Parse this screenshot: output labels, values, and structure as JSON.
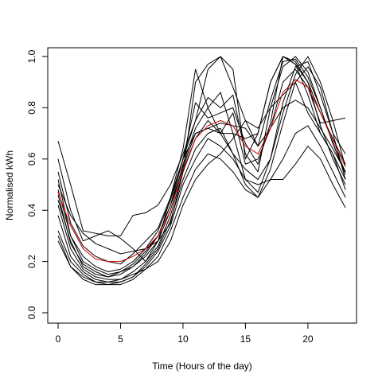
{
  "chart_data": {
    "type": "line",
    "title": "",
    "xlabel": "Time (Hours of the day)",
    "ylabel": "Normalised kWh",
    "xlim": [
      0,
      23
    ],
    "ylim": [
      0,
      1
    ],
    "x_ticks": [
      0,
      5,
      10,
      15,
      20
    ],
    "y_ticks": [
      0.0,
      0.2,
      0.4,
      0.6,
      0.8,
      1.0
    ],
    "x_tick_labels": [
      "0",
      "5",
      "10",
      "15",
      "20"
    ],
    "y_tick_labels": [
      "0.0",
      "0.2",
      "0.4",
      "0.6",
      "0.8",
      "1.0"
    ],
    "grid": false,
    "legend": "none",
    "colors": {
      "profile": "#000000",
      "average": "#cc0000"
    },
    "x": [
      0,
      1,
      2,
      3,
      4,
      5,
      6,
      7,
      8,
      9,
      10,
      11,
      12,
      13,
      14,
      15,
      16,
      17,
      18,
      19,
      20,
      21,
      22,
      23
    ],
    "series": [
      {
        "color": "#000000",
        "values": [
          0.67,
          0.5,
          0.32,
          0.31,
          0.3,
          0.3,
          0.38,
          0.39,
          0.42,
          0.5,
          0.62,
          0.75,
          0.95,
          1.0,
          0.88,
          0.75,
          0.65,
          0.72,
          0.8,
          0.83,
          0.8,
          0.72,
          0.64,
          0.55
        ]
      },
      {
        "color": "#000000",
        "values": [
          0.6,
          0.4,
          0.28,
          0.3,
          0.32,
          0.29,
          0.25,
          0.2,
          0.28,
          0.45,
          0.64,
          0.95,
          0.8,
          0.7,
          0.78,
          0.58,
          0.6,
          0.72,
          0.9,
          0.95,
          0.88,
          0.74,
          0.75,
          0.76
        ]
      },
      {
        "color": "#000000",
        "values": [
          0.55,
          0.35,
          0.26,
          0.22,
          0.2,
          0.19,
          0.23,
          0.28,
          0.33,
          0.45,
          0.6,
          0.7,
          0.72,
          0.7,
          0.7,
          0.68,
          0.7,
          0.9,
          1.0,
          0.97,
          0.85,
          0.7,
          0.62,
          0.48
        ]
      },
      {
        "color": "#000000",
        "values": [
          0.5,
          0.38,
          0.31,
          0.27,
          0.25,
          0.23,
          0.24,
          0.25,
          0.28,
          0.35,
          0.55,
          0.9,
          0.97,
          1.0,
          0.95,
          0.6,
          0.7,
          0.9,
          1.0,
          0.98,
          0.9,
          0.73,
          0.6,
          0.5
        ]
      },
      {
        "color": "#000000",
        "values": [
          0.48,
          0.3,
          0.2,
          0.17,
          0.15,
          0.16,
          0.19,
          0.24,
          0.3,
          0.42,
          0.6,
          0.75,
          0.84,
          0.8,
          0.85,
          0.62,
          0.55,
          0.8,
          0.96,
          1.0,
          0.94,
          0.8,
          0.66,
          0.55
        ]
      },
      {
        "color": "#000000",
        "values": [
          0.44,
          0.28,
          0.18,
          0.15,
          0.14,
          0.15,
          0.18,
          0.22,
          0.28,
          0.4,
          0.58,
          0.72,
          0.8,
          0.86,
          0.7,
          0.52,
          0.47,
          0.6,
          0.82,
          0.96,
          0.98,
          0.85,
          0.7,
          0.62
        ]
      },
      {
        "color": "#000000",
        "values": [
          0.42,
          0.25,
          0.17,
          0.14,
          0.13,
          0.13,
          0.16,
          0.2,
          0.26,
          0.38,
          0.55,
          0.68,
          0.75,
          0.7,
          0.62,
          0.56,
          0.52,
          0.6,
          0.78,
          0.93,
          1.0,
          0.9,
          0.75,
          0.57
        ]
      },
      {
        "color": "#000000",
        "values": [
          0.38,
          0.22,
          0.16,
          0.13,
          0.12,
          0.12,
          0.14,
          0.19,
          0.25,
          0.36,
          0.52,
          0.64,
          0.7,
          0.72,
          0.62,
          0.5,
          0.45,
          0.56,
          0.74,
          0.9,
          0.96,
          0.88,
          0.7,
          0.52
        ]
      },
      {
        "color": "#000000",
        "values": [
          0.32,
          0.2,
          0.15,
          0.12,
          0.11,
          0.12,
          0.14,
          0.18,
          0.24,
          0.34,
          0.5,
          0.6,
          0.68,
          0.65,
          0.6,
          0.52,
          0.5,
          0.52,
          0.6,
          0.7,
          0.73,
          0.65,
          0.55,
          0.45
        ]
      },
      {
        "color": "#000000",
        "values": [
          0.3,
          0.18,
          0.13,
          0.11,
          0.11,
          0.11,
          0.13,
          0.17,
          0.22,
          0.32,
          0.45,
          0.56,
          0.62,
          0.6,
          0.55,
          0.48,
          0.45,
          0.52,
          0.52,
          0.58,
          0.65,
          0.6,
          0.5,
          0.41
        ]
      },
      {
        "color": "#000000",
        "values": [
          0.28,
          0.18,
          0.14,
          0.12,
          0.12,
          0.13,
          0.15,
          0.17,
          0.2,
          0.28,
          0.42,
          0.52,
          0.58,
          0.62,
          0.68,
          0.75,
          0.72,
          0.8,
          0.85,
          0.9,
          0.78,
          0.7,
          0.62,
          0.52
        ]
      },
      {
        "color": "#000000",
        "values": [
          0.52,
          0.3,
          0.22,
          0.18,
          0.16,
          0.17,
          0.2,
          0.25,
          0.32,
          0.44,
          0.6,
          0.82,
          0.76,
          0.78,
          0.8,
          0.66,
          0.58,
          0.74,
          1.0,
          0.97,
          0.9,
          0.78,
          0.68,
          0.58
        ]
      },
      {
        "color": "#000000",
        "values": [
          0.46,
          0.27,
          0.19,
          0.16,
          0.14,
          0.16,
          0.18,
          0.23,
          0.3,
          0.42,
          0.57,
          0.7,
          0.72,
          0.74,
          0.73,
          0.72,
          0.65,
          0.83,
          0.98,
          0.99,
          0.92,
          0.8,
          0.66,
          0.54
        ]
      },
      {
        "color": "#cc0000",
        "values": [
          0.47,
          0.34,
          0.25,
          0.21,
          0.2,
          0.2,
          0.22,
          0.25,
          0.3,
          0.4,
          0.56,
          0.68,
          0.73,
          0.75,
          0.73,
          0.65,
          0.62,
          0.72,
          0.86,
          0.91,
          0.88,
          0.78,
          0.67,
          0.57
        ]
      }
    ]
  }
}
